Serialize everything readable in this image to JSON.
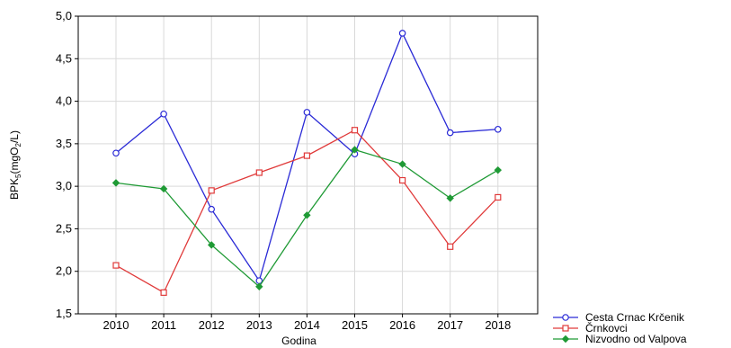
{
  "chart_data": {
    "type": "line",
    "title": "",
    "xlabel": "Godina",
    "ylabel_parts": {
      "main": "BPK",
      "sub1": "5",
      "mid": "(mgO",
      "sub2": "2",
      "end": "/L)"
    },
    "categories": [
      "2010",
      "2011",
      "2012",
      "2013",
      "2014",
      "2015",
      "2016",
      "2017",
      "2018"
    ],
    "ylim": [
      1.5,
      5.0
    ],
    "yticks": [
      "1,5",
      "2,0",
      "2,5",
      "3,0",
      "3,5",
      "4,0",
      "4,5",
      "5,0"
    ],
    "ytick_values": [
      1.5,
      2.0,
      2.5,
      3.0,
      3.5,
      4.0,
      4.5,
      5.0
    ],
    "grid": true,
    "legend_position": "bottom-right",
    "series": [
      {
        "name": "Cesta Crnac Krčenik",
        "color": "#2a2ad6",
        "marker": "circle",
        "values": [
          3.39,
          3.85,
          2.73,
          1.89,
          3.87,
          3.38,
          4.8,
          3.63,
          3.67
        ]
      },
      {
        "name": "Črnkovci",
        "color": "#e03a3a",
        "marker": "square",
        "values": [
          2.07,
          1.75,
          2.95,
          3.16,
          3.36,
          3.66,
          3.07,
          2.29,
          2.87
        ]
      },
      {
        "name": "Nizvodno od Valpova",
        "color": "#1f9a35",
        "marker": "diamond",
        "values": [
          3.04,
          2.97,
          2.31,
          1.82,
          2.66,
          3.43,
          3.26,
          2.86,
          3.19
        ]
      }
    ]
  }
}
